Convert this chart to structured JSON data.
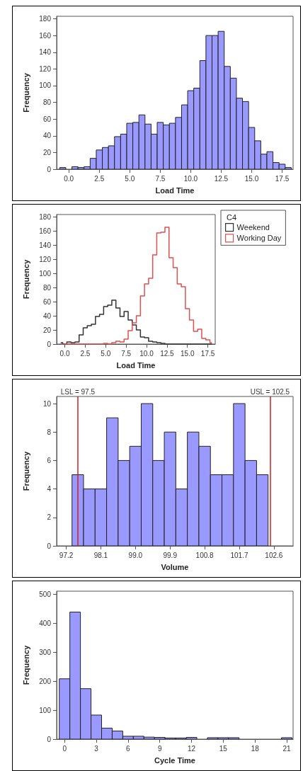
{
  "chart_data": [
    {
      "type": "histogram",
      "xlabel": "Load Time",
      "ylabel": "Frequency",
      "bins": [
        -0.75,
        -0.25,
        0.25,
        0.75,
        1.25,
        1.75,
        2.25,
        2.75,
        3.25,
        3.75,
        4.25,
        4.75,
        5.25,
        5.75,
        6.25,
        6.75,
        7.25,
        7.75,
        8.25,
        8.75,
        9.25,
        9.75,
        10.25,
        10.75,
        11.25,
        11.75,
        12.25,
        12.75,
        13.25,
        13.75,
        14.25,
        14.75,
        15.25,
        15.75,
        16.25,
        16.75,
        17.25,
        17.75,
        18.25
      ],
      "values": [
        2,
        0,
        3,
        2,
        3,
        13,
        23,
        26,
        28,
        39,
        42,
        55,
        56,
        65,
        54,
        42,
        56,
        53,
        55,
        62,
        77,
        94,
        97,
        130,
        160,
        160,
        165,
        123,
        109,
        85,
        81,
        50,
        34,
        18,
        21,
        8,
        6,
        2
      ],
      "color": "#9999ff",
      "xlim": [
        -1.0,
        18.4
      ],
      "ylim": [
        0,
        183
      ],
      "xticks": [
        {
          "value": 0,
          "label": "0.0"
        },
        2.5,
        {
          "value": 5,
          "label": "5.0"
        },
        7.5,
        {
          "value": 10,
          "label": "10.0"
        },
        12.5,
        {
          "value": 15,
          "label": "15.0"
        },
        17.5
      ],
      "yticks": [
        0,
        20,
        40,
        60,
        80,
        100,
        120,
        140,
        160,
        180
      ],
      "grid": false,
      "legend": false
    },
    {
      "type": "step",
      "xlabel": "Load Time",
      "ylabel": "Frequency",
      "legend_title": "C4",
      "legend": "right",
      "x": [
        -0.5,
        0,
        0.5,
        1,
        1.5,
        2,
        2.5,
        3,
        3.5,
        4,
        4.5,
        5,
        5.5,
        6,
        6.5,
        7,
        7.5,
        8,
        8.5,
        9,
        9.5,
        10,
        10.5,
        11,
        11.5,
        12,
        12.5,
        13,
        13.5,
        14,
        14.5,
        15,
        15.5,
        16,
        16.5,
        17,
        17.5,
        18
      ],
      "series": [
        {
          "name": "Weekend",
          "color": "#333333",
          "values": [
            2,
            0,
            3,
            2,
            3,
            13,
            23,
            26,
            28,
            39,
            42,
            53,
            55,
            62,
            51,
            39,
            46,
            34,
            27,
            20,
            10,
            9,
            4,
            3,
            2,
            1,
            0,
            0,
            0,
            0,
            0,
            0,
            0,
            0,
            0,
            0,
            0,
            0
          ]
        },
        {
          "name": "Working Day",
          "color": "#e05050",
          "values": [
            0,
            0,
            0,
            0,
            0,
            0,
            0,
            0,
            0,
            0,
            0,
            1,
            0,
            2,
            4,
            3,
            7,
            19,
            30,
            40,
            68,
            85,
            93,
            126,
            157,
            158,
            165,
            122,
            108,
            85,
            81,
            50,
            34,
            18,
            21,
            8,
            6,
            2
          ]
        }
      ],
      "xlim": [
        -1.0,
        18.4
      ],
      "ylim": [
        0,
        183
      ],
      "xticks": [
        {
          "value": 0,
          "label": "0.0"
        },
        2.5,
        {
          "value": 5,
          "label": "5.0"
        },
        7.5,
        {
          "value": 10,
          "label": "10.0"
        },
        12.5,
        {
          "value": 15,
          "label": "15.0"
        },
        17.5
      ],
      "yticks": [
        0,
        20,
        40,
        60,
        80,
        100,
        120,
        140,
        160,
        180
      ],
      "grid": false,
      "marker": "none"
    },
    {
      "type": "histogram",
      "xlabel": "Volume",
      "ylabel": "Frequency",
      "bins": [
        97.35,
        97.65,
        97.95,
        98.25,
        98.55,
        98.85,
        99.15,
        99.45,
        99.75,
        100.05,
        100.35,
        100.65,
        100.95,
        101.25,
        101.55,
        101.85,
        102.15,
        102.45
      ],
      "values": [
        5,
        4,
        4,
        9,
        6,
        7,
        10,
        6,
        8,
        4,
        8,
        7,
        5,
        5,
        10,
        6,
        5
      ],
      "color": "#9999ff",
      "xlim": [
        96.95,
        103.1
      ],
      "ylim": [
        0,
        10.5
      ],
      "xticks": [
        97.2,
        98.1,
        {
          "value": 99,
          "label": "99.0"
        },
        99.9,
        100.8,
        101.7,
        102.6
      ],
      "yticks": [
        0,
        2,
        4,
        6,
        8,
        10
      ],
      "grid": false,
      "legend": false,
      "ref_lines": [
        {
          "axis": "x",
          "value": 97.5,
          "label": "LSL = 97.5",
          "color": "#cc2222"
        },
        {
          "axis": "x",
          "value": 102.5,
          "label": "USL = 102.5",
          "color": "#cc2222"
        }
      ]
    },
    {
      "type": "histogram",
      "xlabel": "Cycle Time",
      "ylabel": "Frequency",
      "bins": [
        -0.5,
        0.5,
        1.5,
        2.5,
        3.5,
        4.5,
        5.5,
        6.5,
        7.5,
        8.5,
        9.5,
        10.5,
        11.5,
        12.5,
        13.5,
        14.5,
        15.5,
        16.5,
        17.5,
        18.5,
        19.5,
        20.5,
        21.5
      ],
      "values": [
        208,
        438,
        174,
        83,
        38,
        28,
        10,
        10,
        7,
        6,
        4,
        4,
        6,
        0,
        5,
        5,
        5,
        0,
        0,
        0,
        0,
        5
      ],
      "color": "#9999ff",
      "xlim": [
        -0.75,
        21.6
      ],
      "ylim": [
        0,
        510
      ],
      "xticks": [
        0,
        3,
        6,
        9,
        12,
        15,
        18,
        21
      ],
      "yticks": [
        0,
        100,
        200,
        300,
        400,
        500
      ],
      "grid": false,
      "legend": false
    }
  ]
}
